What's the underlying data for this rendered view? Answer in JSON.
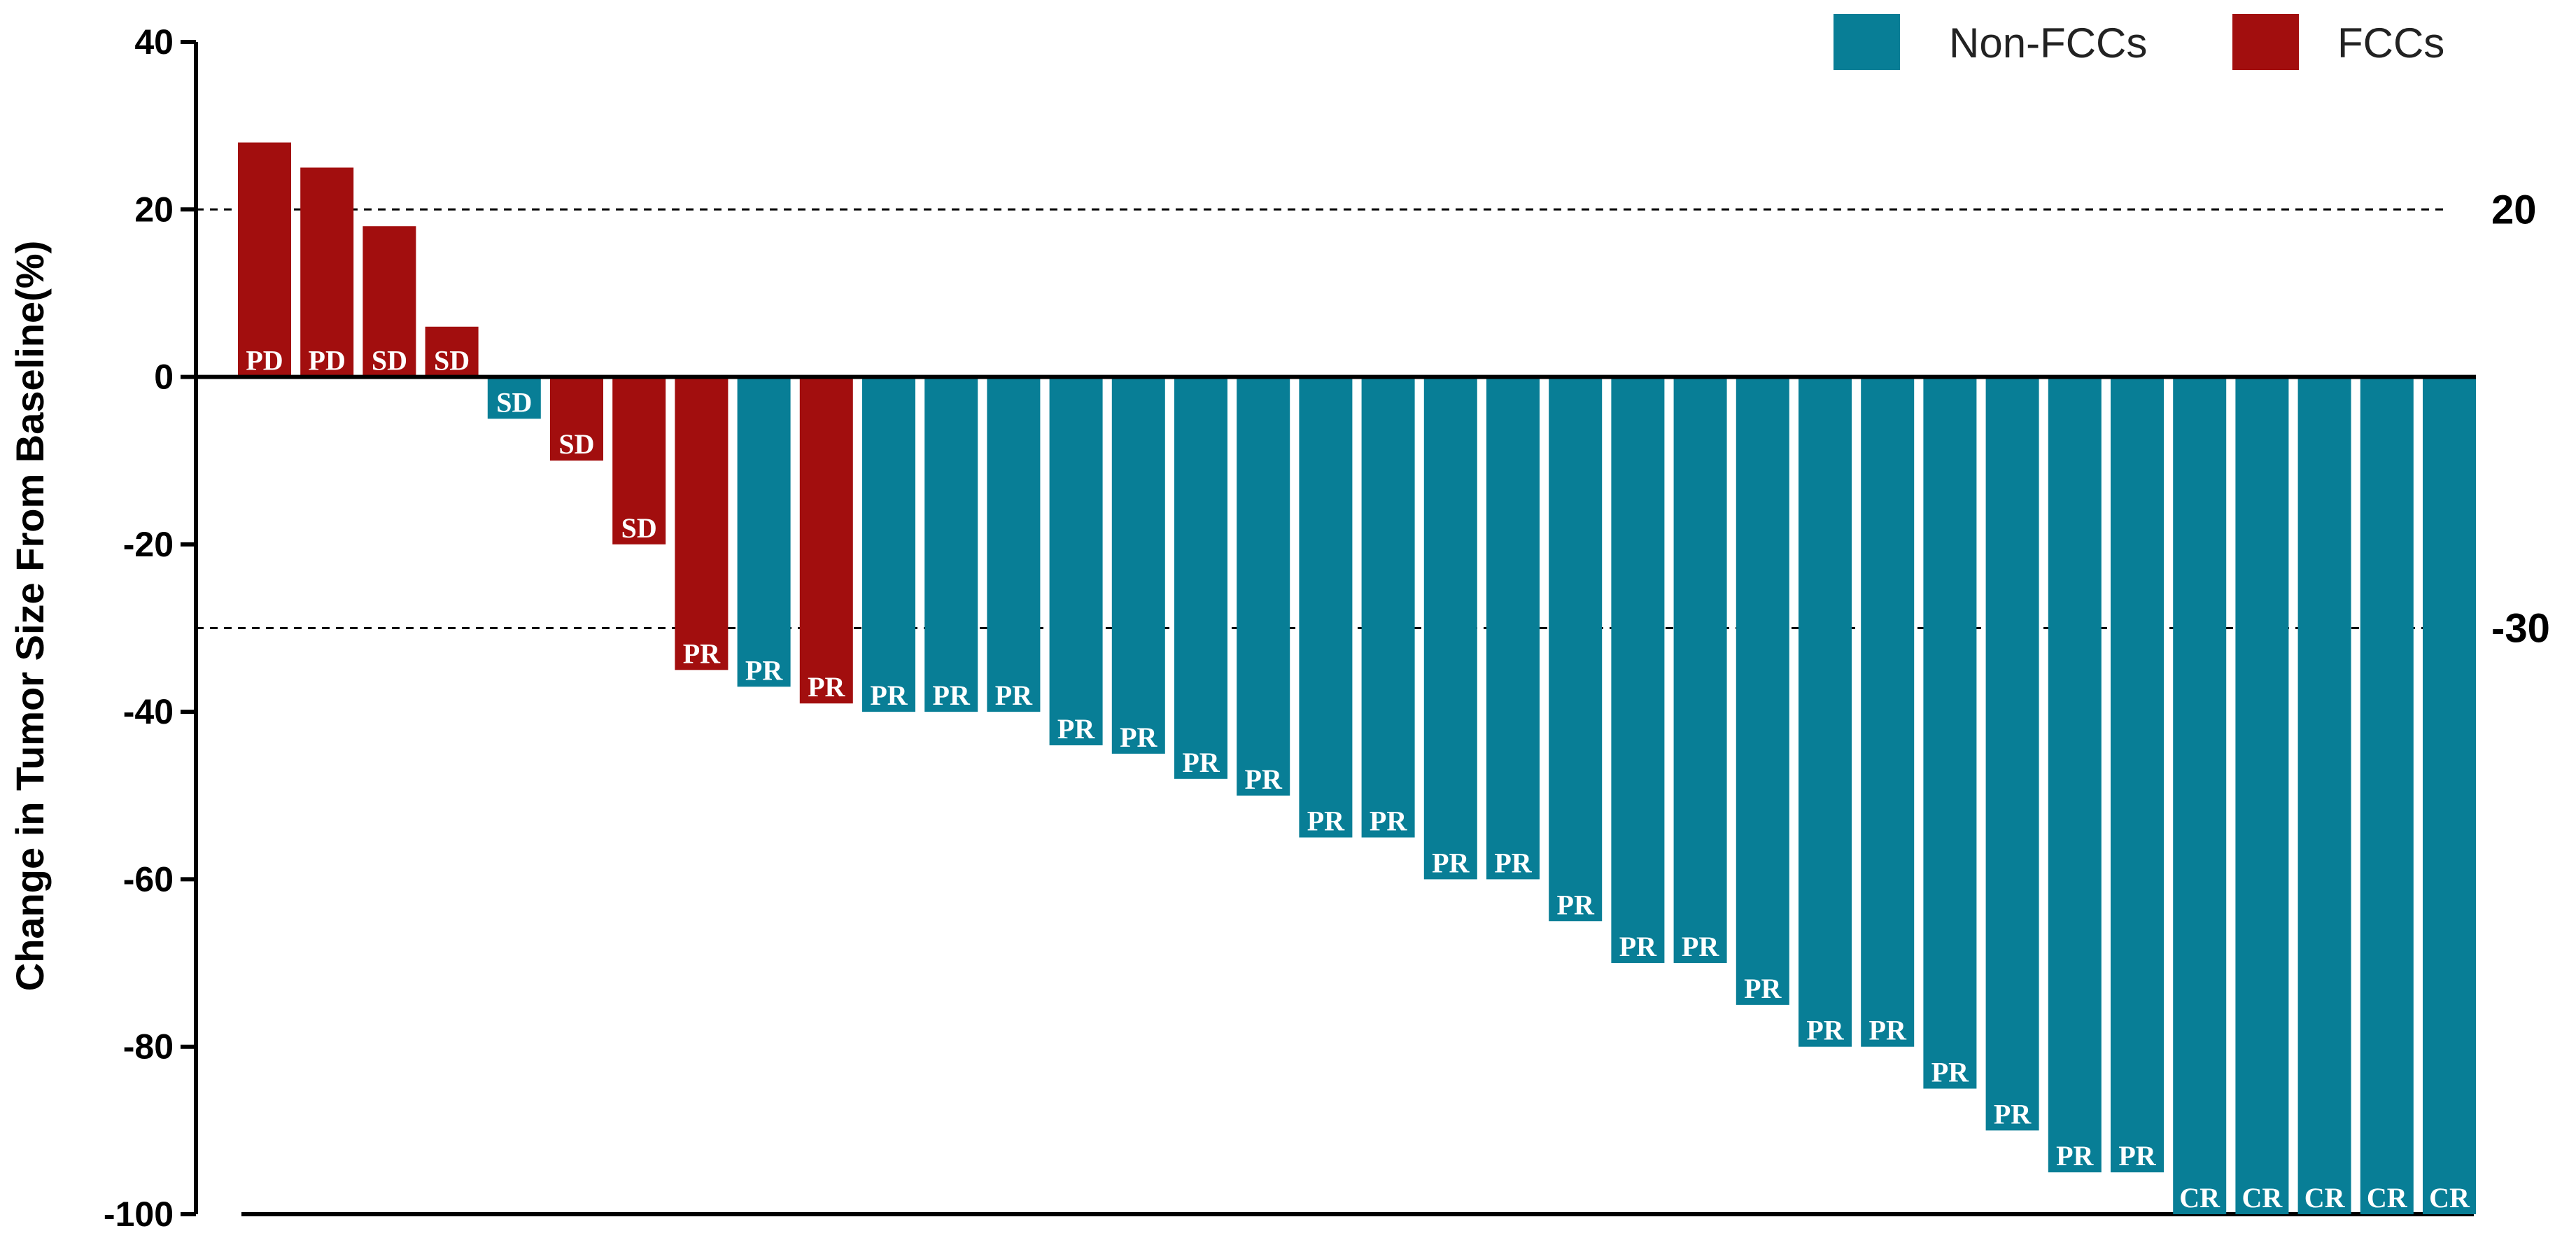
{
  "chart_data": {
    "type": "bar",
    "title": "",
    "xlabel": "",
    "ylabel": "Change in Tumor Size From Baseline(%)",
    "ylim": [
      -100,
      40
    ],
    "yticks": [
      40,
      20,
      0,
      -20,
      -40,
      -60,
      -80,
      -100
    ],
    "grid": false,
    "legend_position": "top-right",
    "series": [
      {
        "name": "Non-FCCs",
        "color": "#087E96"
      },
      {
        "name": "FCCs",
        "color": "#A20E0E"
      }
    ],
    "reference_lines": [
      {
        "value": 20,
        "label": "20",
        "style": "dashed"
      },
      {
        "value": -30,
        "label": "-30",
        "style": "dashed"
      }
    ],
    "bars": [
      {
        "value": 28,
        "group": "FCCs",
        "label": "PD"
      },
      {
        "value": 25,
        "group": "FCCs",
        "label": "PD"
      },
      {
        "value": 18,
        "group": "FCCs",
        "label": "SD"
      },
      {
        "value": 6,
        "group": "FCCs",
        "label": "SD"
      },
      {
        "value": -5,
        "group": "Non-FCCs",
        "label": "SD"
      },
      {
        "value": -10,
        "group": "FCCs",
        "label": "SD"
      },
      {
        "value": -20,
        "group": "FCCs",
        "label": "SD"
      },
      {
        "value": -35,
        "group": "FCCs",
        "label": "PR"
      },
      {
        "value": -37,
        "group": "Non-FCCs",
        "label": "PR"
      },
      {
        "value": -39,
        "group": "FCCs",
        "label": "PR"
      },
      {
        "value": -40,
        "group": "Non-FCCs",
        "label": "PR"
      },
      {
        "value": -40,
        "group": "Non-FCCs",
        "label": "PR"
      },
      {
        "value": -40,
        "group": "Non-FCCs",
        "label": "PR"
      },
      {
        "value": -44,
        "group": "Non-FCCs",
        "label": "PR"
      },
      {
        "value": -45,
        "group": "Non-FCCs",
        "label": "PR"
      },
      {
        "value": -48,
        "group": "Non-FCCs",
        "label": "PR"
      },
      {
        "value": -50,
        "group": "Non-FCCs",
        "label": "PR"
      },
      {
        "value": -55,
        "group": "Non-FCCs",
        "label": "PR"
      },
      {
        "value": -55,
        "group": "Non-FCCs",
        "label": "PR"
      },
      {
        "value": -60,
        "group": "Non-FCCs",
        "label": "PR"
      },
      {
        "value": -60,
        "group": "Non-FCCs",
        "label": "PR"
      },
      {
        "value": -65,
        "group": "Non-FCCs",
        "label": "PR"
      },
      {
        "value": -70,
        "group": "Non-FCCs",
        "label": "PR"
      },
      {
        "value": -70,
        "group": "Non-FCCs",
        "label": "PR"
      },
      {
        "value": -75,
        "group": "Non-FCCs",
        "label": "PR"
      },
      {
        "value": -80,
        "group": "Non-FCCs",
        "label": "PR"
      },
      {
        "value": -80,
        "group": "Non-FCCs",
        "label": "PR"
      },
      {
        "value": -85,
        "group": "Non-FCCs",
        "label": "PR"
      },
      {
        "value": -90,
        "group": "Non-FCCs",
        "label": "PR"
      },
      {
        "value": -95,
        "group": "Non-FCCs",
        "label": "PR"
      },
      {
        "value": -95,
        "group": "Non-FCCs",
        "label": "PR"
      },
      {
        "value": -100,
        "group": "Non-FCCs",
        "label": "CR"
      },
      {
        "value": -100,
        "group": "Non-FCCs",
        "label": "CR"
      },
      {
        "value": -100,
        "group": "Non-FCCs",
        "label": "CR"
      },
      {
        "value": -100,
        "group": "Non-FCCs",
        "label": "CR"
      },
      {
        "value": -100,
        "group": "Non-FCCs",
        "label": "CR"
      }
    ]
  }
}
